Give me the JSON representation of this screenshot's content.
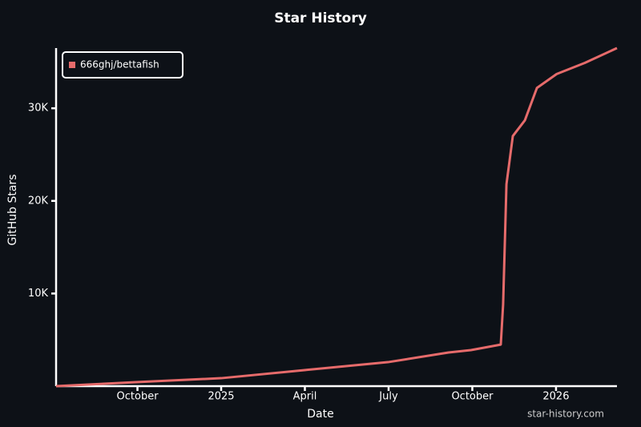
{
  "chart_data": {
    "type": "line",
    "title": "Star History",
    "x_label": "Date",
    "y_label": "GitHub Stars",
    "watermark": "star-history.com",
    "x": [
      2024.507,
      2024.746,
      2025.0,
      2025.249,
      2025.498,
      2025.679,
      2025.746,
      2025.835,
      2025.842,
      2025.852,
      2025.871,
      2025.907,
      2025.943,
      2026.002,
      2026.086,
      2026.182
    ],
    "series": [
      {
        "name": "666ghj/bettafish",
        "color": "#e66b6b",
        "values": [
          0,
          430,
          860,
          1730,
          2590,
          3630,
          3890,
          4490,
          8800,
          21800,
          27000,
          28700,
          32200,
          33700,
          34900,
          36500
        ]
      }
    ],
    "xlim": [
      2024.507,
      2026.182
    ],
    "xticks": [
      {
        "value": 2024.75,
        "label": "October"
      },
      2025,
      {
        "value": 2025.25,
        "label": "April"
      },
      {
        "value": 2025.5,
        "label": "July"
      },
      {
        "value": 2025.75,
        "label": "October"
      },
      2026
    ],
    "ylim": [
      0,
      36500
    ],
    "yticks": [
      {
        "value": 10000,
        "label": "10K"
      },
      {
        "value": 20000,
        "label": "20K"
      },
      {
        "value": 30000,
        "label": "30K"
      }
    ],
    "legend": "top-left"
  }
}
